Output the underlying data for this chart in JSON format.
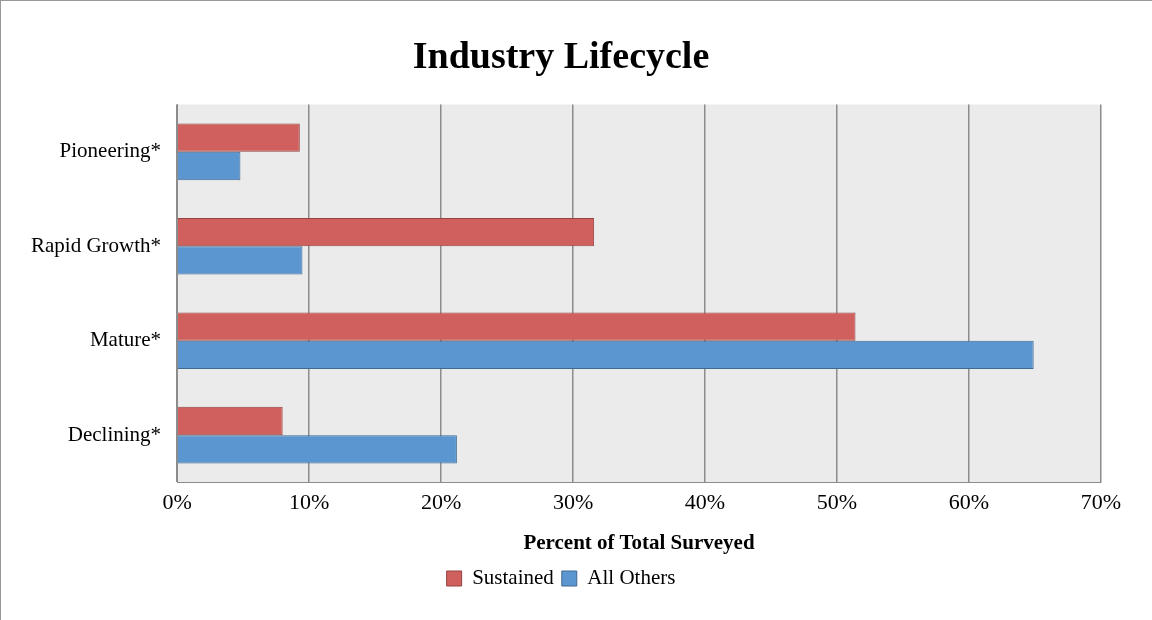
{
  "chart_data": {
    "type": "bar",
    "orientation": "horizontal",
    "title": "Industry Lifecycle",
    "xlabel": "Percent of Total Surveyed",
    "categories": [
      "Pioneering*",
      "Rapid Growth*",
      "Mature*",
      "Declining*"
    ],
    "series": [
      {
        "name": "Sustained",
        "color": "#d0605e",
        "values": [
          9.3,
          31.6,
          51.4,
          8.0
        ]
      },
      {
        "name": "All Others",
        "color": "#5b96d0",
        "values": [
          4.8,
          9.5,
          64.9,
          21.2
        ]
      }
    ],
    "xlim": [
      0,
      70
    ],
    "xticks": [
      {
        "value": 0,
        "label": "0%"
      },
      {
        "value": 10,
        "label": "10%"
      },
      {
        "value": 20,
        "label": "20%"
      },
      {
        "value": 30,
        "label": "30%"
      },
      {
        "value": 40,
        "label": "40%"
      },
      {
        "value": 50,
        "label": "50%"
      },
      {
        "value": 60,
        "label": "60%"
      },
      {
        "value": 70,
        "label": "70%"
      }
    ],
    "grid": "x",
    "legend": "bottom"
  }
}
